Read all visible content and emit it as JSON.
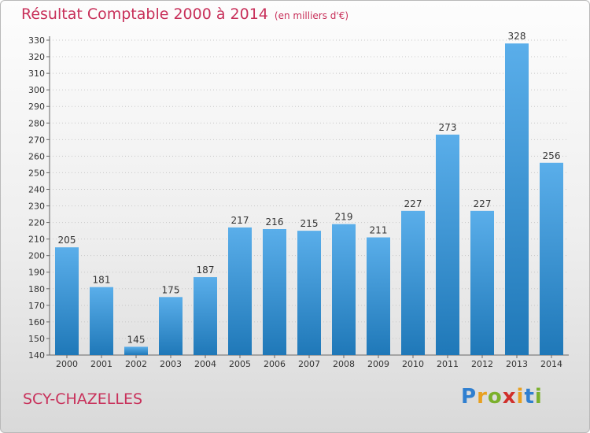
{
  "title": "Résultat Comptable 2000 à 2014",
  "subtitle": "(en milliers d'€)",
  "town": "SCY-CHAZELLES",
  "logo": {
    "letters": [
      "P",
      "r",
      "o",
      "x",
      "i",
      "t",
      "i"
    ],
    "colors": [
      "#2f7fd0",
      "#e8a020",
      "#7bb02c",
      "#d0302c",
      "#e8a020",
      "#2f7fd0",
      "#7bb02c"
    ]
  },
  "colors": {
    "title": "#c8305a",
    "bar_light": "#5aaeea",
    "bar_dark": "#1f78b8"
  },
  "chart_data": {
    "type": "bar",
    "title": "Résultat Comptable 2000 à 2014",
    "categories": [
      "2000",
      "2001",
      "2002",
      "2003",
      "2004",
      "2005",
      "2006",
      "2007",
      "2008",
      "2009",
      "2010",
      "2011",
      "2012",
      "2013",
      "2014"
    ],
    "values": [
      205,
      181,
      145,
      175,
      187,
      217,
      216,
      215,
      219,
      211,
      227,
      273,
      227,
      328,
      256
    ],
    "ylim": [
      140,
      330
    ],
    "ytick_step": 10,
    "grid": true,
    "xlabel": "",
    "ylabel": ""
  }
}
